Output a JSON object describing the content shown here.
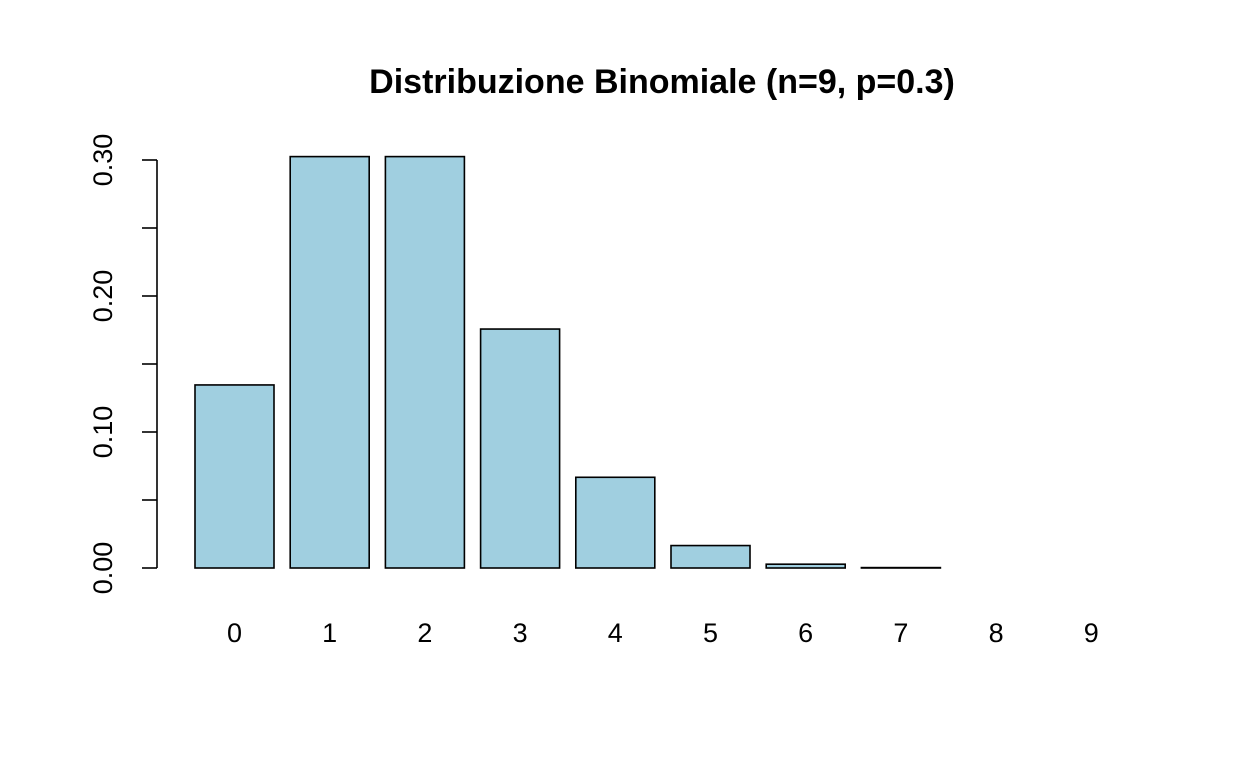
{
  "chart_data": {
    "type": "bar",
    "title": "Distribuzione Binomiale (n=9, p=0.3)",
    "xlabel": "",
    "ylabel": "",
    "categories": [
      "0",
      "1",
      "2",
      "3",
      "4",
      "5",
      "6",
      "7",
      "8",
      "9"
    ],
    "values": [
      0.1346,
      0.3025,
      0.3025,
      0.1757,
      0.0667,
      0.0165,
      0.0028,
      0.0003,
      0.0,
      0.0
    ],
    "ylim": [
      0,
      0.3
    ],
    "y_ticks": [
      0.0,
      0.05,
      0.1,
      0.15,
      0.2,
      0.25,
      0.3
    ],
    "y_tick_labels": [
      "0.00",
      "",
      "0.10",
      "",
      "0.20",
      "",
      "0.30"
    ],
    "grid": false,
    "legend": "none",
    "colors": {
      "bar_fill": "#a0cfe0",
      "bar_stroke": "#000000",
      "background": "#ffffff"
    }
  }
}
